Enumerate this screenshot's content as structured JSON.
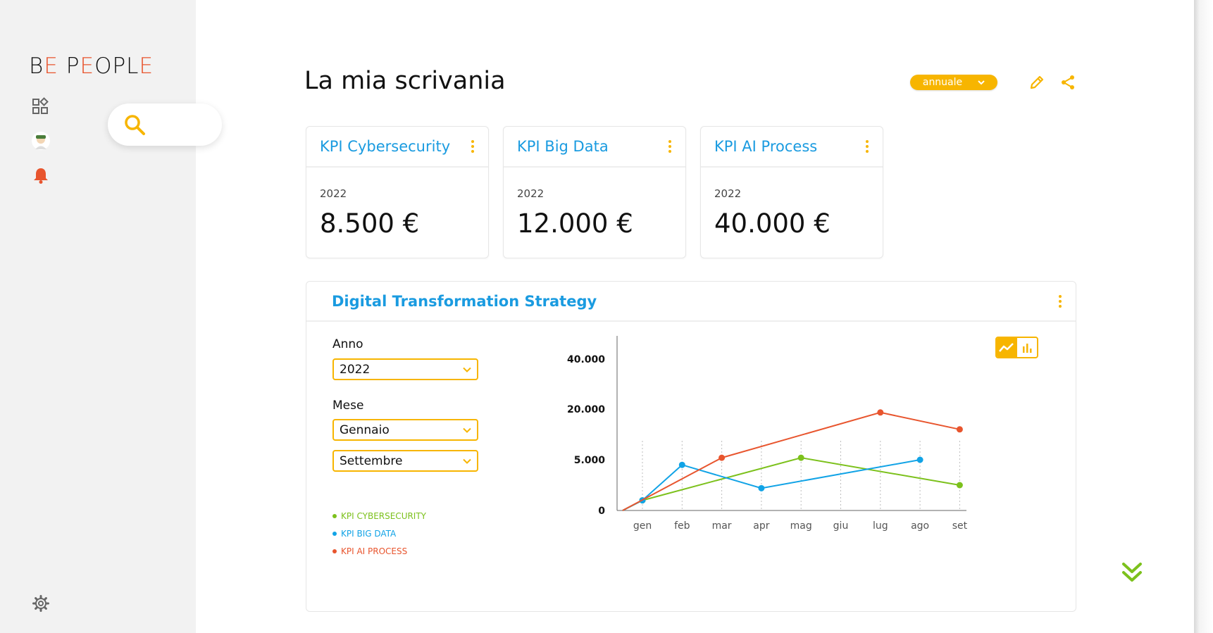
{
  "brand": {
    "logo_parts": [
      "B",
      "E",
      " P",
      "E",
      "OPL",
      "E"
    ]
  },
  "sidebar": {
    "icons": [
      "dashboard-icon",
      "user-avatar-icon",
      "bell-icon",
      "gear-icon"
    ],
    "search_icon": "search-icon"
  },
  "header": {
    "title": "La mia scrivania",
    "period_select": "annuale",
    "edit_icon": "pencil-icon",
    "share_icon": "share-icon"
  },
  "kpi_cards": [
    {
      "title": "KPI Cybersecurity",
      "year": "2022",
      "value": "8.500 €"
    },
    {
      "title": "KPI Big Data",
      "year": "2022",
      "value": "12.000 €"
    },
    {
      "title": "KPI AI Process",
      "year": "2022",
      "value": "40.000 €"
    }
  ],
  "panel": {
    "title": "Digital Transformation Strategy",
    "year_label": "Anno",
    "year_value": "2022",
    "month_label": "Mese",
    "month_from": "Gennaio",
    "month_to": "Settembre",
    "chart_type_active": "line"
  },
  "colors": {
    "accent": "#f7b500",
    "title_blue": "#1a9be0",
    "cybersecurity": "#7cc11c",
    "big_data": "#11a3e6",
    "ai_process": "#e8552e",
    "scroll": "#7cc11c"
  },
  "chart_data": {
    "type": "line",
    "categories": [
      "gen",
      "feb",
      "mar",
      "apr",
      "mag",
      "giu",
      "lug",
      "ago",
      "set"
    ],
    "y_ticks": [
      "0",
      "5.000",
      "20.000",
      "40.000"
    ],
    "y_scale": "non-linear",
    "grid": "vertical-dotted",
    "legend_placement": "left",
    "series": [
      {
        "name": "KPI CYBERSECURITY",
        "color": "#7cc11c",
        "points": [
          [
            -0.5,
            0
          ],
          [
            0,
            1000
          ],
          [
            4,
            5600
          ],
          [
            8,
            2500
          ]
        ]
      },
      {
        "name": "KPI BIG DATA",
        "color": "#11a3e6",
        "points": [
          [
            -0.5,
            0
          ],
          [
            0,
            1000
          ],
          [
            1,
            4500
          ],
          [
            3,
            2200
          ],
          [
            7,
            5000
          ]
        ]
      },
      {
        "name": "KPI AI PROCESS",
        "color": "#e8552e",
        "points": [
          [
            -0.5,
            0
          ],
          [
            2,
            5600
          ],
          [
            6,
            19000
          ],
          [
            8,
            14000
          ]
        ]
      }
    ]
  }
}
